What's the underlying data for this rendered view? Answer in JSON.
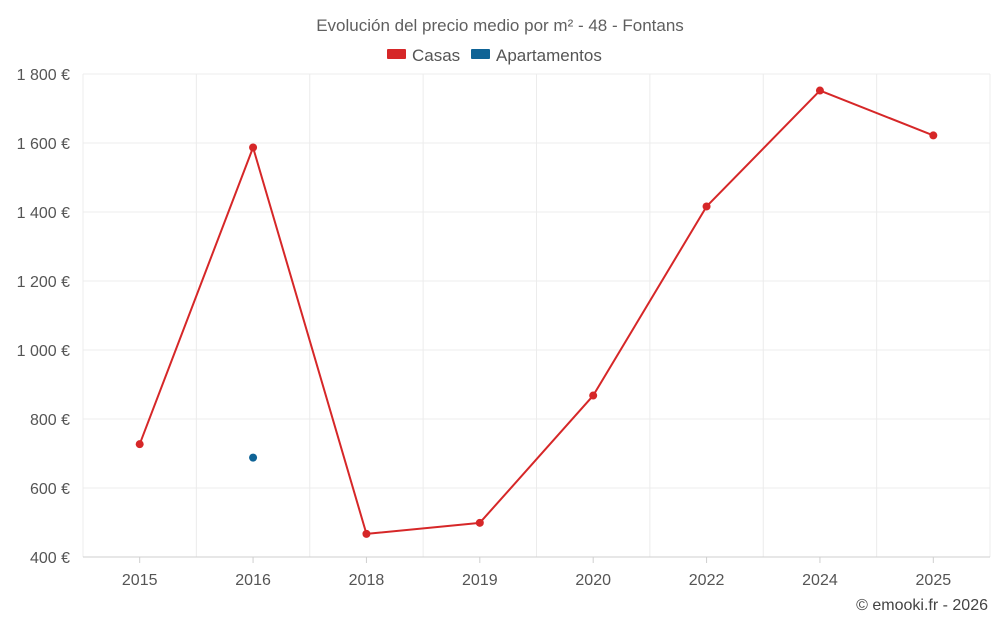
{
  "chart_data": {
    "type": "line",
    "title": "Evolución del precio medio por m² - 48 - Fontans",
    "categories": [
      "2015",
      "2016",
      "2018",
      "2019",
      "2020",
      "2022",
      "2024",
      "2025"
    ],
    "y_tick_labels": [
      "400 €",
      "600 €",
      "800 €",
      "1 000 €",
      "1 200 €",
      "1 400 €",
      "1 600 €",
      "1 800 €"
    ],
    "ylim": [
      400,
      1800
    ],
    "y_ticks": [
      400,
      600,
      800,
      1000,
      1200,
      1400,
      1600,
      1800
    ],
    "grid": true,
    "legend_position": "top-center",
    "xlabel": "",
    "ylabel": "",
    "series": [
      {
        "name": "Casas",
        "color": "#d62728",
        "values": [
          727,
          1587,
          467,
          499,
          868,
          1416,
          1752,
          1622
        ]
      },
      {
        "name": "Apartamentos",
        "color": "#0e6396",
        "values": [
          null,
          688,
          null,
          null,
          null,
          null,
          null,
          null
        ]
      }
    ]
  },
  "credit": "© emooki.fr - 2026"
}
